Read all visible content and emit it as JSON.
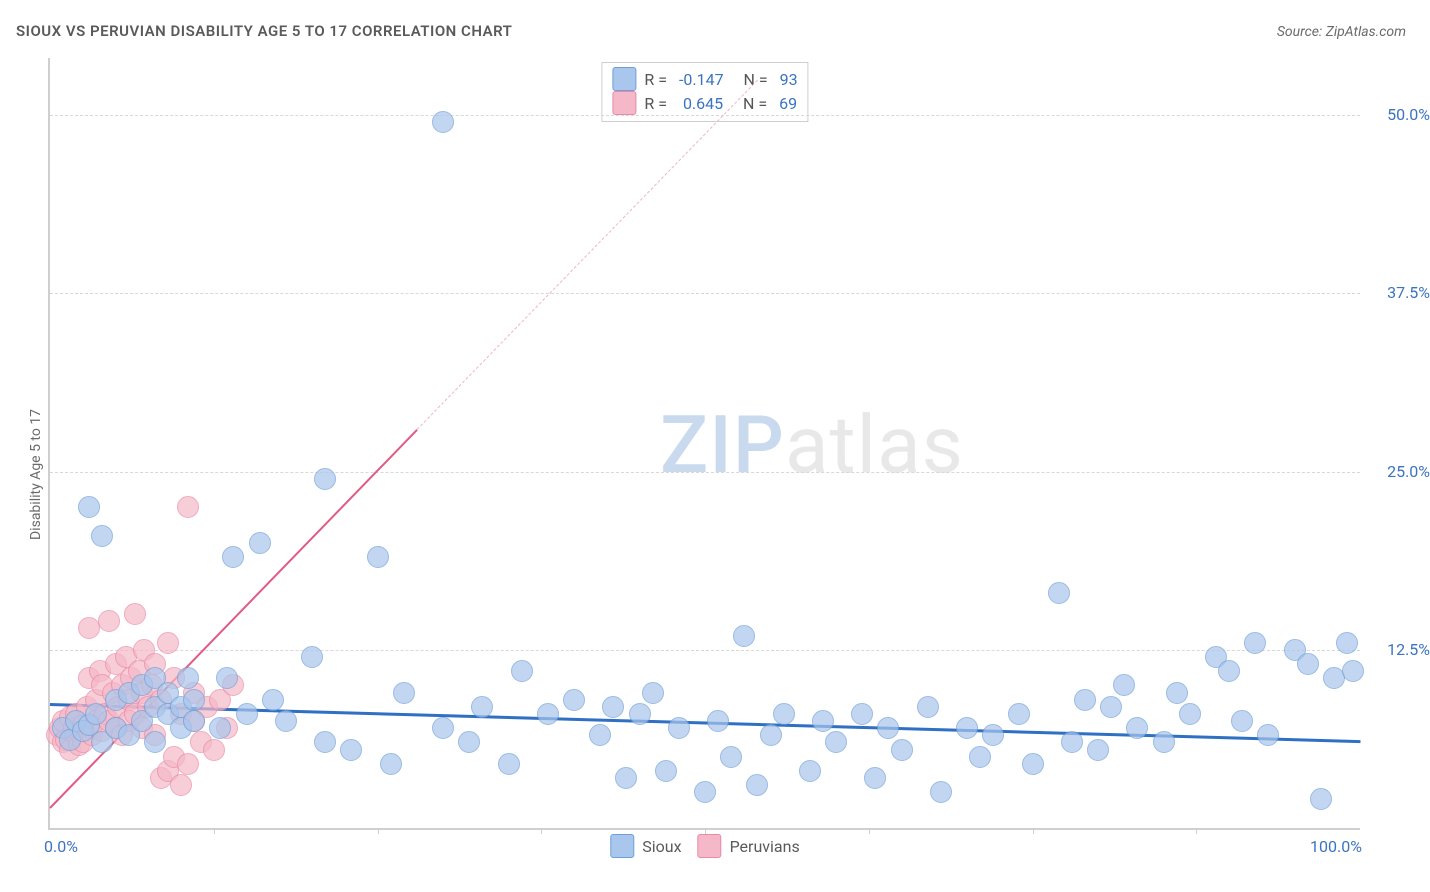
{
  "title": "SIOUX VS PERUVIAN DISABILITY AGE 5 TO 17 CORRELATION CHART",
  "source_label": "Source: ZipAtlas.com",
  "y_axis_label": "Disability Age 5 to 17",
  "watermark": {
    "zip": "ZIP",
    "atlas": "atlas"
  },
  "chart": {
    "type": "scatter",
    "background_color": "#ffffff",
    "grid_color": "#d8d8d8",
    "axis_color": "#cfcfcf",
    "xlim": [
      0,
      100
    ],
    "ylim": [
      0,
      54
    ],
    "x_ticks": [
      {
        "pos": 0,
        "label": "0.0%"
      },
      {
        "pos": 100,
        "label": "100.0%"
      }
    ],
    "x_minor_ticks": [
      12.5,
      25,
      37.5,
      50,
      62.5,
      75,
      87.5
    ],
    "y_ticks": [
      {
        "pos": 12.5,
        "label": "12.5%"
      },
      {
        "pos": 25.0,
        "label": "25.0%"
      },
      {
        "pos": 37.5,
        "label": "37.5%"
      },
      {
        "pos": 50.0,
        "label": "50.0%"
      }
    ],
    "tick_label_color": "#3b74c1",
    "tick_label_fontsize": 16,
    "point_radius": 10,
    "point_fill_opacity": 0.35,
    "series": {
      "sioux": {
        "label": "Sioux",
        "color": "#a9c6ec",
        "stroke": "#6f9fd8",
        "trend": {
          "x1": 0,
          "y1": 8.8,
          "x2": 100,
          "y2": 6.2,
          "color": "#2f6fc4",
          "width": 3,
          "dash": null
        },
        "stats": {
          "R": "-0.147",
          "N": "93"
        },
        "points": [
          [
            1,
            7
          ],
          [
            1.5,
            6.2
          ],
          [
            2,
            7.5
          ],
          [
            2.5,
            6.8
          ],
          [
            3,
            7.2
          ],
          [
            3,
            22.5
          ],
          [
            3.5,
            8
          ],
          [
            4,
            6
          ],
          [
            4,
            20.5
          ],
          [
            5,
            7
          ],
          [
            5,
            9
          ],
          [
            6,
            6.5
          ],
          [
            6,
            9.5
          ],
          [
            7,
            7.5
          ],
          [
            7,
            10
          ],
          [
            8,
            6
          ],
          [
            8,
            8.5
          ],
          [
            8,
            10.5
          ],
          [
            9,
            8
          ],
          [
            9,
            9.5
          ],
          [
            10,
            7
          ],
          [
            10,
            8.5
          ],
          [
            10.5,
            10.5
          ],
          [
            11,
            7.5
          ],
          [
            11,
            9
          ],
          [
            13,
            7
          ],
          [
            13.5,
            10.5
          ],
          [
            14,
            19
          ],
          [
            15,
            8
          ],
          [
            16,
            20
          ],
          [
            17,
            9
          ],
          [
            18,
            7.5
          ],
          [
            20,
            12
          ],
          [
            21,
            6
          ],
          [
            21,
            24.5
          ],
          [
            23,
            5.5
          ],
          [
            25,
            19
          ],
          [
            26,
            4.5
          ],
          [
            27,
            9.5
          ],
          [
            30,
            7
          ],
          [
            30,
            49.5
          ],
          [
            32,
            6
          ],
          [
            33,
            8.5
          ],
          [
            35,
            4.5
          ],
          [
            36,
            11
          ],
          [
            38,
            8
          ],
          [
            40,
            9
          ],
          [
            42,
            6.5
          ],
          [
            43,
            8.5
          ],
          [
            44,
            3.5
          ],
          [
            45,
            8
          ],
          [
            46,
            9.5
          ],
          [
            47,
            4
          ],
          [
            48,
            7
          ],
          [
            50,
            2.5
          ],
          [
            51,
            7.5
          ],
          [
            52,
            5
          ],
          [
            53,
            13.5
          ],
          [
            54,
            3
          ],
          [
            55,
            6.5
          ],
          [
            56,
            8
          ],
          [
            58,
            4
          ],
          [
            59,
            7.5
          ],
          [
            60,
            6
          ],
          [
            62,
            8
          ],
          [
            63,
            3.5
          ],
          [
            64,
            7
          ],
          [
            65,
            5.5
          ],
          [
            67,
            8.5
          ],
          [
            68,
            2.5
          ],
          [
            70,
            7
          ],
          [
            71,
            5
          ],
          [
            72,
            6.5
          ],
          [
            74,
            8
          ],
          [
            75,
            4.5
          ],
          [
            77,
            16.5
          ],
          [
            78,
            6
          ],
          [
            79,
            9
          ],
          [
            80,
            5.5
          ],
          [
            81,
            8.5
          ],
          [
            82,
            10
          ],
          [
            83,
            7
          ],
          [
            85,
            6
          ],
          [
            86,
            9.5
          ],
          [
            87,
            8
          ],
          [
            89,
            12
          ],
          [
            90,
            11
          ],
          [
            91,
            7.5
          ],
          [
            92,
            13
          ],
          [
            93,
            6.5
          ],
          [
            95,
            12.5
          ],
          [
            96,
            11.5
          ],
          [
            97,
            2
          ],
          [
            98,
            10.5
          ],
          [
            99,
            13
          ],
          [
            99.5,
            11
          ]
        ]
      },
      "peruvians": {
        "label": "Peruvians",
        "color": "#f5b8c8",
        "stroke": "#e98aa4",
        "trend_solid": {
          "x1": 0,
          "y1": 1.5,
          "x2": 28,
          "y2": 28,
          "color": "#e15a84",
          "width": 2.5
        },
        "trend_dash": {
          "x1": 28,
          "y1": 28,
          "x2": 54,
          "y2": 52.5,
          "color": "#f1b3c6",
          "width": 1.5
        },
        "stats": {
          "R": "0.645",
          "N": "69"
        },
        "points": [
          [
            0.5,
            6.5
          ],
          [
            0.8,
            7
          ],
          [
            1,
            6
          ],
          [
            1,
            7.5
          ],
          [
            1.2,
            6.2
          ],
          [
            1.5,
            7.8
          ],
          [
            1.5,
            5.5
          ],
          [
            1.8,
            7
          ],
          [
            2,
            6.5
          ],
          [
            2,
            8
          ],
          [
            2.2,
            5.8
          ],
          [
            2.5,
            7.2
          ],
          [
            2.5,
            6
          ],
          [
            2.8,
            8.5
          ],
          [
            3,
            14
          ],
          [
            3,
            10.5
          ],
          [
            3.2,
            6.5
          ],
          [
            3.5,
            7.5
          ],
          [
            3.5,
            9
          ],
          [
            3.8,
            11
          ],
          [
            4,
            6.8
          ],
          [
            4,
            10
          ],
          [
            4.2,
            8
          ],
          [
            4.5,
            14.5
          ],
          [
            4.5,
            7.5
          ],
          [
            4.8,
            9.5
          ],
          [
            5,
            11.5
          ],
          [
            5,
            7
          ],
          [
            5.2,
            8.5
          ],
          [
            5.5,
            10
          ],
          [
            5.5,
            6.5
          ],
          [
            5.8,
            12
          ],
          [
            6,
            9
          ],
          [
            6,
            7.5
          ],
          [
            6.2,
            10.5
          ],
          [
            6.5,
            15
          ],
          [
            6.5,
            8
          ],
          [
            6.8,
            11
          ],
          [
            7,
            9.5
          ],
          [
            7,
            7
          ],
          [
            7.2,
            12.5
          ],
          [
            7.5,
            8.5
          ],
          [
            7.8,
            10
          ],
          [
            8,
            11.5
          ],
          [
            8,
            6.5
          ],
          [
            8.5,
            3.5
          ],
          [
            8.5,
            9
          ],
          [
            9,
            4
          ],
          [
            9,
            13
          ],
          [
            9.5,
            5
          ],
          [
            9.5,
            10.5
          ],
          [
            10,
            3
          ],
          [
            10,
            8
          ],
          [
            10.5,
            4.5
          ],
          [
            10.5,
            22.5
          ],
          [
            11,
            7.5
          ],
          [
            11,
            9.5
          ],
          [
            11.5,
            6
          ],
          [
            12,
            8.5
          ],
          [
            12.5,
            5.5
          ],
          [
            13,
            9
          ],
          [
            13.5,
            7
          ],
          [
            14,
            10
          ]
        ]
      }
    }
  },
  "bottom_legend": [
    {
      "label": "Sioux",
      "fill": "#a9c6ec",
      "stroke": "#6f9fd8"
    },
    {
      "label": "Peruvians",
      "fill": "#f5b8c8",
      "stroke": "#e98aa4"
    }
  ]
}
